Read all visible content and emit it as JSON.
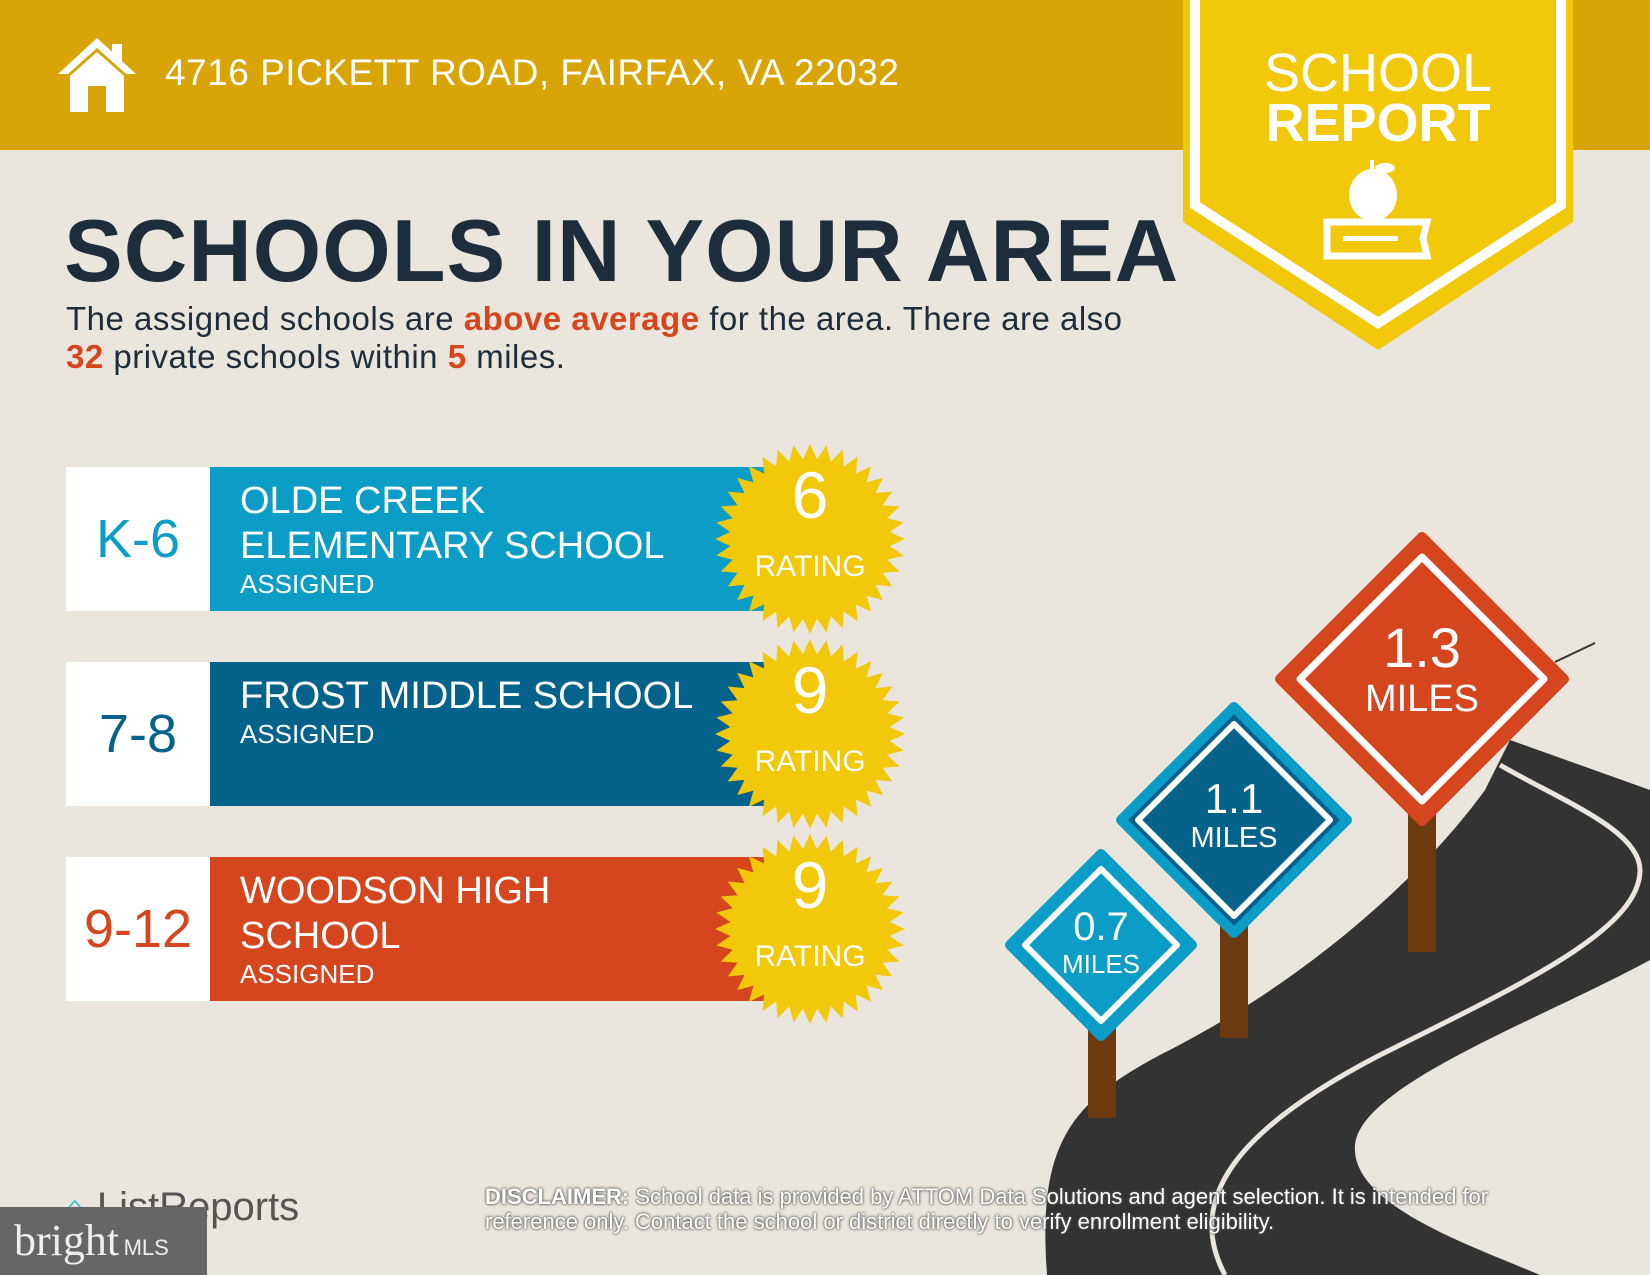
{
  "header": {
    "address": "4716 PICKETT ROAD, FAIRFAX, VA 22032",
    "badge_line1": "SCHOOL",
    "badge_line2": "REPORT",
    "home_icon": "house-icon",
    "badge_icon": "apple-on-book-icon"
  },
  "title": "SCHOOLS IN YOUR AREA",
  "summary": {
    "p1": "The assigned schools are ",
    "quality": "above average",
    "p2": " for the area. There are also ",
    "private_count": "32",
    "p3": " private schools within ",
    "miles": "5",
    "p4": " miles."
  },
  "schools": [
    {
      "grade": "K-6",
      "name_line1": "OLDE CREEK",
      "name_line2": "ELEMENTARY SCHOOL",
      "status": "ASSIGNED",
      "rating": "6",
      "rating_label": "RATING",
      "color": "#0B9DC6",
      "grade_color": "#0B9DC6",
      "distance": "0.7",
      "distance_unit": "MILES"
    },
    {
      "grade": "7-8",
      "name_line1": "FROST MIDDLE SCHOOL",
      "name_line2": "",
      "status": "ASSIGNED",
      "rating": "9",
      "rating_label": "RATING",
      "color": "#05628A",
      "grade_color": "#05628A",
      "distance": "1.1",
      "distance_unit": "MILES"
    },
    {
      "grade": "9-12",
      "name_line1": "WOODSON HIGH",
      "name_line2": "SCHOOL",
      "status": "ASSIGNED",
      "rating": "9",
      "rating_label": "RATING",
      "color": "#D6461E",
      "grade_color": "#D6461E",
      "distance": "1.3",
      "distance_unit": "MILES"
    }
  ],
  "colors": {
    "header": "#D9A406",
    "badge": "#F2C80A",
    "star": "#F2C80A",
    "road": "#333333",
    "pole": "#6B3A0F"
  },
  "footer": {
    "disclaimer_label": "DISCLAIMER:",
    "disclaimer": " School data is provided by ATTOM Data Solutions and agent selection. It is intended for reference only. Contact the school or district directly to verify enrollment eligibility.",
    "brand": "ListReports",
    "mls_brand": "bright",
    "mls_suffix": "MLS"
  }
}
